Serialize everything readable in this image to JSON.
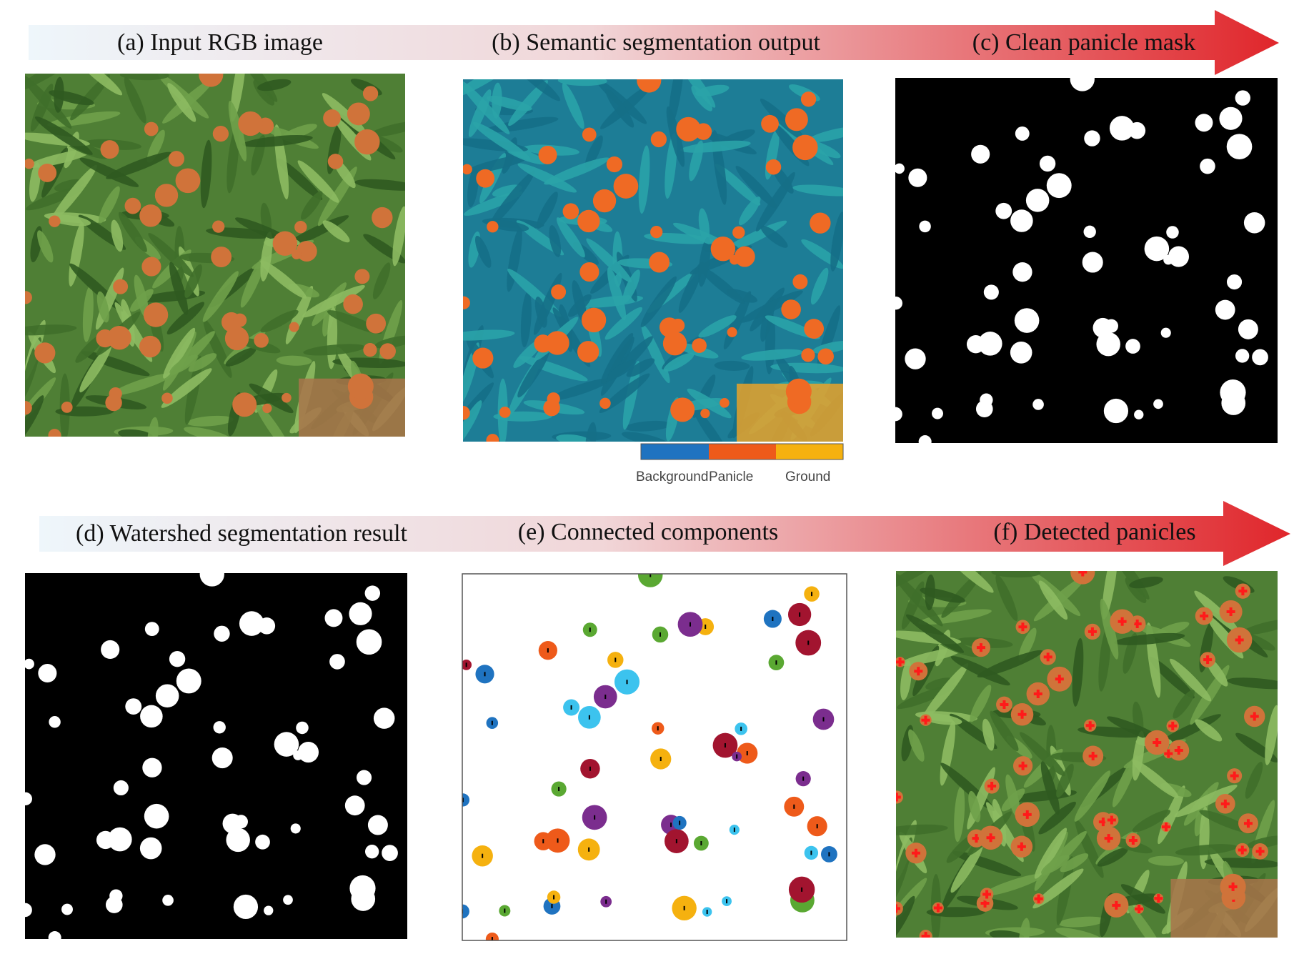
{
  "row1": {
    "panels": [
      "(a) Input RGB image",
      "(b) Semantic segmentation output",
      "(c) Clean panicle mask"
    ]
  },
  "legend": [
    "Background",
    "Panicle",
    "Ground"
  ],
  "row2": {
    "panels": [
      "(d) Watershed segmentation result",
      "(e) Connected components",
      "(f) Detected panicles"
    ]
  }
}
